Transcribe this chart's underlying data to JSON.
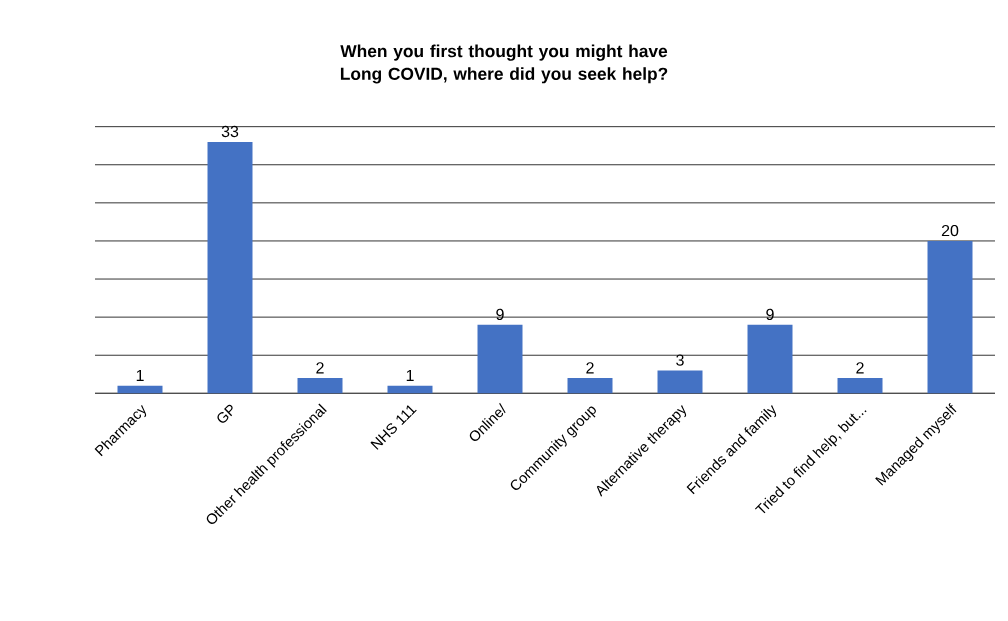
{
  "chart_data": {
    "type": "bar",
    "title": "When you first thought you might have Long COVID, where did you seek help?",
    "categories": [
      "Pharmacy",
      "GP",
      "Other health professional",
      "NHS 111",
      "Online/",
      "Community group",
      "Alternative therapy",
      "Friends and family",
      "Tried to find help, but...",
      "Managed myself"
    ],
    "values": [
      1,
      33,
      2,
      1,
      9,
      2,
      3,
      9,
      2,
      20
    ],
    "color": "#4472c4",
    "ylim": [
      0,
      35
    ],
    "yticks": [
      {
        "value": 0,
        "label": null
      },
      {
        "value": 5,
        "label": null
      },
      {
        "value": 10,
        "label": null
      },
      {
        "value": 15,
        "label": null
      },
      {
        "value": 20,
        "label": null
      },
      {
        "value": 25,
        "label": null
      },
      {
        "value": 30,
        "label": null
      },
      {
        "value": 35,
        "label": null
      }
    ],
    "grid": "y",
    "tick_labels": "x",
    "data_labels": true
  }
}
